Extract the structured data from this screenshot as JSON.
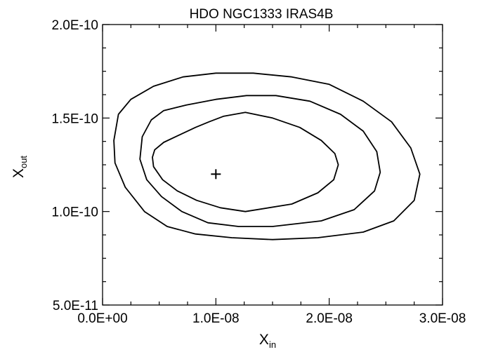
{
  "chart_data": {
    "type": "contour",
    "title": "HDO  NGC1333 IRAS4B",
    "xlabel": {
      "main": "X",
      "sub": "in"
    },
    "ylabel": {
      "main": "X",
      "sub": "out"
    },
    "xlim": [
      0,
      3e-08
    ],
    "ylim": [
      5e-11,
      2e-10
    ],
    "x_ticks": [
      {
        "value": 0,
        "label": "0.0E+00"
      },
      {
        "value": 1e-08,
        "label": "1.0E-08"
      },
      {
        "value": 2e-08,
        "label": "2.0E-08"
      },
      {
        "value": 3e-08,
        "label": "3.0E-08"
      }
    ],
    "y_ticks": [
      {
        "value": 5e-11,
        "label": "5.0E-11"
      },
      {
        "value": 1e-10,
        "label": "1.0E-10"
      },
      {
        "value": 1.5e-10,
        "label": "1.5E-10"
      },
      {
        "value": 2e-10,
        "label": "2.0E-10"
      }
    ],
    "minor_ticks": {
      "x_per_major": 4,
      "y_per_major": 4
    },
    "best_fit": {
      "x": 1e-08,
      "y": 1.2e-10,
      "marker": "+"
    },
    "contours": [
      {
        "level": "inner",
        "points": [
          [
            4.6e-09,
            1.33e-10
          ],
          [
            5.4e-09,
            1.37e-10
          ],
          [
            6.8e-09,
            1.41e-10
          ],
          [
            8.2e-09,
            1.45e-10
          ],
          [
            9.4e-09,
            1.48e-10
          ],
          [
            1.07e-08,
            1.51e-10
          ],
          [
            1.26e-08,
            1.53e-10
          ],
          [
            1.5e-08,
            1.5e-10
          ],
          [
            1.74e-08,
            1.45e-10
          ],
          [
            1.93e-08,
            1.38e-10
          ],
          [
            2.05e-08,
            1.31e-10
          ],
          [
            2.08e-08,
            1.25e-10
          ],
          [
            2.04e-08,
            1.17e-10
          ],
          [
            1.9e-08,
            1.1e-10
          ],
          [
            1.67e-08,
            1.04e-10
          ],
          [
            1.26e-08,
            1e-10
          ],
          [
            1.04e-08,
            1.02e-10
          ],
          [
            8.3e-09,
            1.06e-10
          ],
          [
            6.6e-09,
            1.11e-10
          ],
          [
            5.3e-09,
            1.17e-10
          ],
          [
            4.5e-09,
            1.24e-10
          ],
          [
            4.4e-09,
            1.29e-10
          ]
        ]
      },
      {
        "level": "middle",
        "points": [
          [
            5.4e-09,
            1.54e-10
          ],
          [
            7.4e-09,
            1.57e-10
          ],
          [
            1e-08,
            1.6e-10
          ],
          [
            1.27e-08,
            1.62e-10
          ],
          [
            1.53e-08,
            1.62e-10
          ],
          [
            1.83e-08,
            1.59e-10
          ],
          [
            2.1e-08,
            1.52e-10
          ],
          [
            2.3e-08,
            1.43e-10
          ],
          [
            2.42e-08,
            1.32e-10
          ],
          [
            2.45e-08,
            1.21e-10
          ],
          [
            2.4e-08,
            1.11e-10
          ],
          [
            2.22e-08,
            1.01e-10
          ],
          [
            1.93e-08,
            9.5e-11
          ],
          [
            1.5e-08,
            9.2e-11
          ],
          [
            1.2e-08,
            9.2e-11
          ],
          [
            9.3e-09,
            9.4e-11
          ],
          [
            7e-09,
            1e-10
          ],
          [
            5.2e-09,
            1.08e-10
          ],
          [
            3.9e-09,
            1.17e-10
          ],
          [
            3.3e-09,
            1.28e-10
          ],
          [
            3.5e-09,
            1.4e-10
          ],
          [
            4.3e-09,
            1.49e-10
          ]
        ]
      },
      {
        "level": "outer",
        "points": [
          [
            2.5e-09,
            1.6e-10
          ],
          [
            4.5e-09,
            1.67e-10
          ],
          [
            7.1e-09,
            1.72e-10
          ],
          [
            1e-08,
            1.74e-10
          ],
          [
            1.33e-08,
            1.74e-10
          ],
          [
            1.67e-08,
            1.72e-10
          ],
          [
            2e-08,
            1.68e-10
          ],
          [
            2.3e-08,
            1.59e-10
          ],
          [
            2.55e-08,
            1.48e-10
          ],
          [
            2.72e-08,
            1.34e-10
          ],
          [
            2.8e-08,
            1.2e-10
          ],
          [
            2.75e-08,
            1.06e-10
          ],
          [
            2.57e-08,
            9.5e-11
          ],
          [
            2.3e-08,
            8.9e-11
          ],
          [
            1.9e-08,
            8.6e-11
          ],
          [
            1.5e-08,
            8.5e-11
          ],
          [
            1.14e-08,
            8.6e-11
          ],
          [
            8.2e-09,
            8.8e-11
          ],
          [
            5.7e-09,
            9.2e-11
          ],
          [
            3.7e-09,
            1e-10
          ],
          [
            2e-09,
            1.13e-10
          ],
          [
            1.1e-09,
            1.26e-10
          ],
          [
            1e-09,
            1.38e-10
          ],
          [
            1.4e-09,
            1.52e-10
          ]
        ]
      }
    ]
  }
}
